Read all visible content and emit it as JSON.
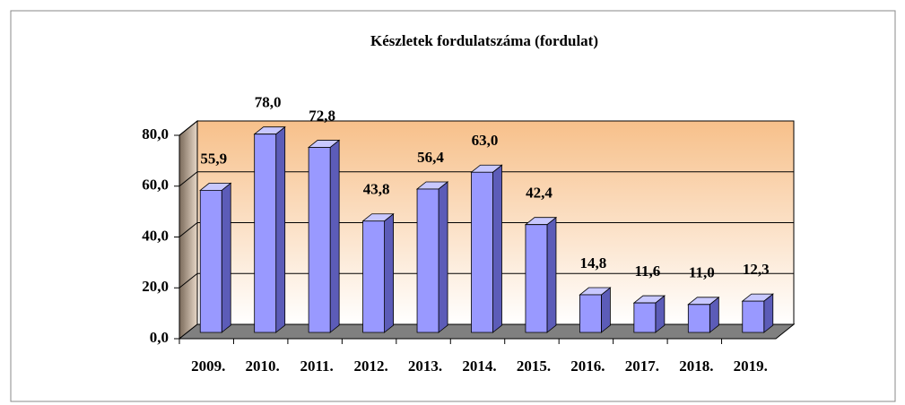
{
  "chart_data": {
    "type": "bar",
    "title": "Készletek fordulatszáma (fordulat)",
    "categories": [
      "2009.",
      "2010.",
      "2011.",
      "2012.",
      "2013.",
      "2014.",
      "2015.",
      "2016.",
      "2017.",
      "2018.",
      "2019."
    ],
    "values": [
      55.9,
      78.0,
      72.8,
      43.8,
      56.4,
      63.0,
      42.4,
      14.8,
      11.6,
      11.0,
      12.3
    ],
    "value_labels": [
      "55,9",
      "78,0",
      "72,8",
      "43,8",
      "56,4",
      "63,0",
      "42,4",
      "14,8",
      "11,6",
      "11,0",
      "12,3"
    ],
    "color": "#9999ff",
    "ylim": [
      0,
      80
    ],
    "yticks": [
      {
        "value": 0,
        "label": "0,0"
      },
      {
        "value": 20,
        "label": "20,0"
      },
      {
        "value": 40,
        "label": "40,0"
      },
      {
        "value": 60,
        "label": "60,0"
      },
      {
        "value": 80,
        "label": "80,0"
      }
    ],
    "grid": true
  }
}
